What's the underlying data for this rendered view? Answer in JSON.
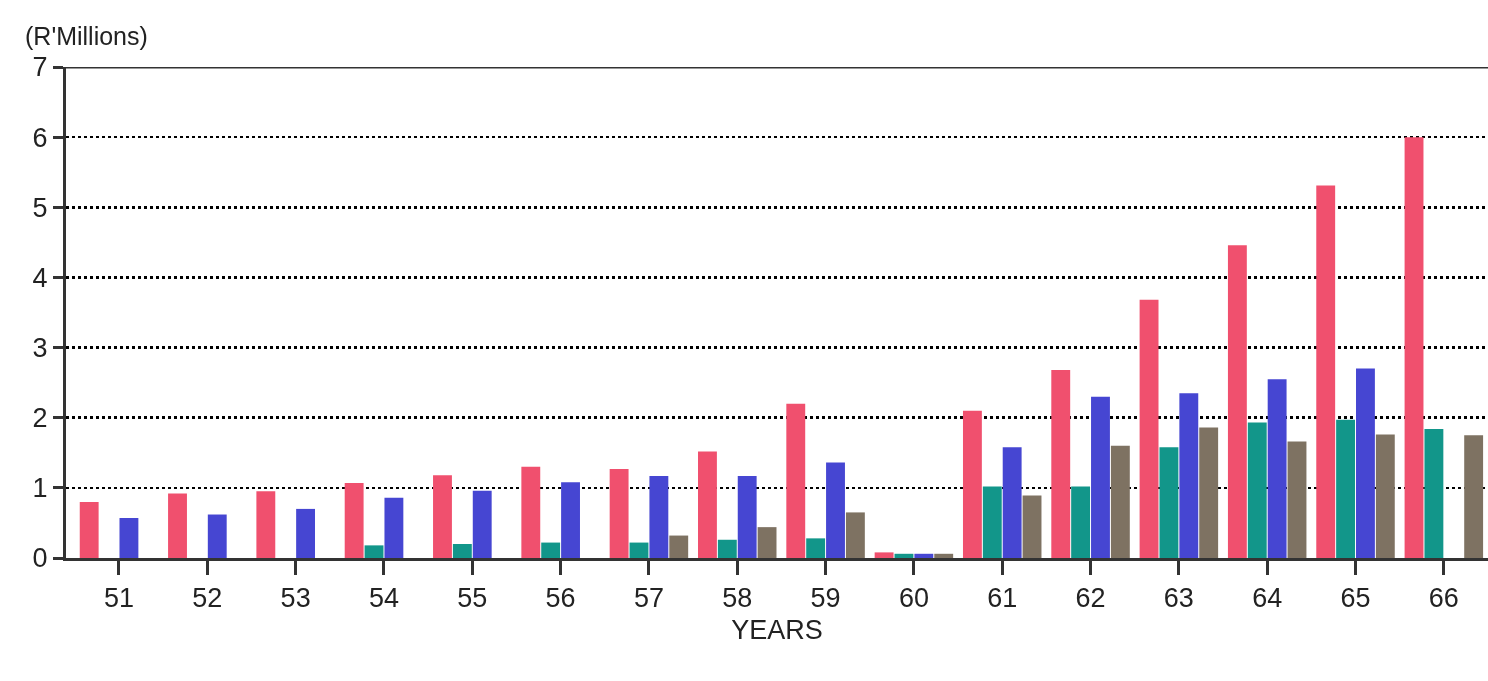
{
  "chart_data": {
    "type": "bar",
    "ylabel": "(R'Millions)",
    "xlabel": "YEARS",
    "categories": [
      "51",
      "52",
      "53",
      "54",
      "55",
      "56",
      "57",
      "58",
      "59",
      "60",
      "61",
      "62",
      "63",
      "64",
      "65",
      "66"
    ],
    "series": [
      {
        "color": "#f0506e",
        "values": [
          0.8,
          0.92,
          0.95,
          1.07,
          1.18,
          1.3,
          1.27,
          1.52,
          2.2,
          0.08,
          2.1,
          2.68,
          3.68,
          4.46,
          5.31,
          6.0
        ]
      },
      {
        "color": "#12968a",
        "values": [
          null,
          null,
          null,
          0.18,
          0.2,
          0.22,
          0.22,
          0.26,
          0.28,
          0.06,
          1.02,
          1.02,
          1.58,
          1.93,
          1.97,
          1.84
        ]
      },
      {
        "color": "#4646d2",
        "values": [
          0.57,
          0.62,
          0.7,
          0.86,
          0.96,
          1.08,
          1.17,
          1.17,
          1.36,
          0.06,
          1.58,
          2.3,
          2.35,
          2.55,
          2.7,
          null
        ]
      },
      {
        "color": "#7e7262",
        "values": [
          null,
          null,
          null,
          null,
          null,
          null,
          0.32,
          0.44,
          0.65,
          0.06,
          0.89,
          1.6,
          1.86,
          1.66,
          1.76,
          1.75
        ]
      }
    ],
    "ylim": [
      0,
      7
    ],
    "yticks": [
      0,
      1,
      2,
      3,
      4,
      5,
      6,
      7
    ],
    "grid": "y"
  }
}
